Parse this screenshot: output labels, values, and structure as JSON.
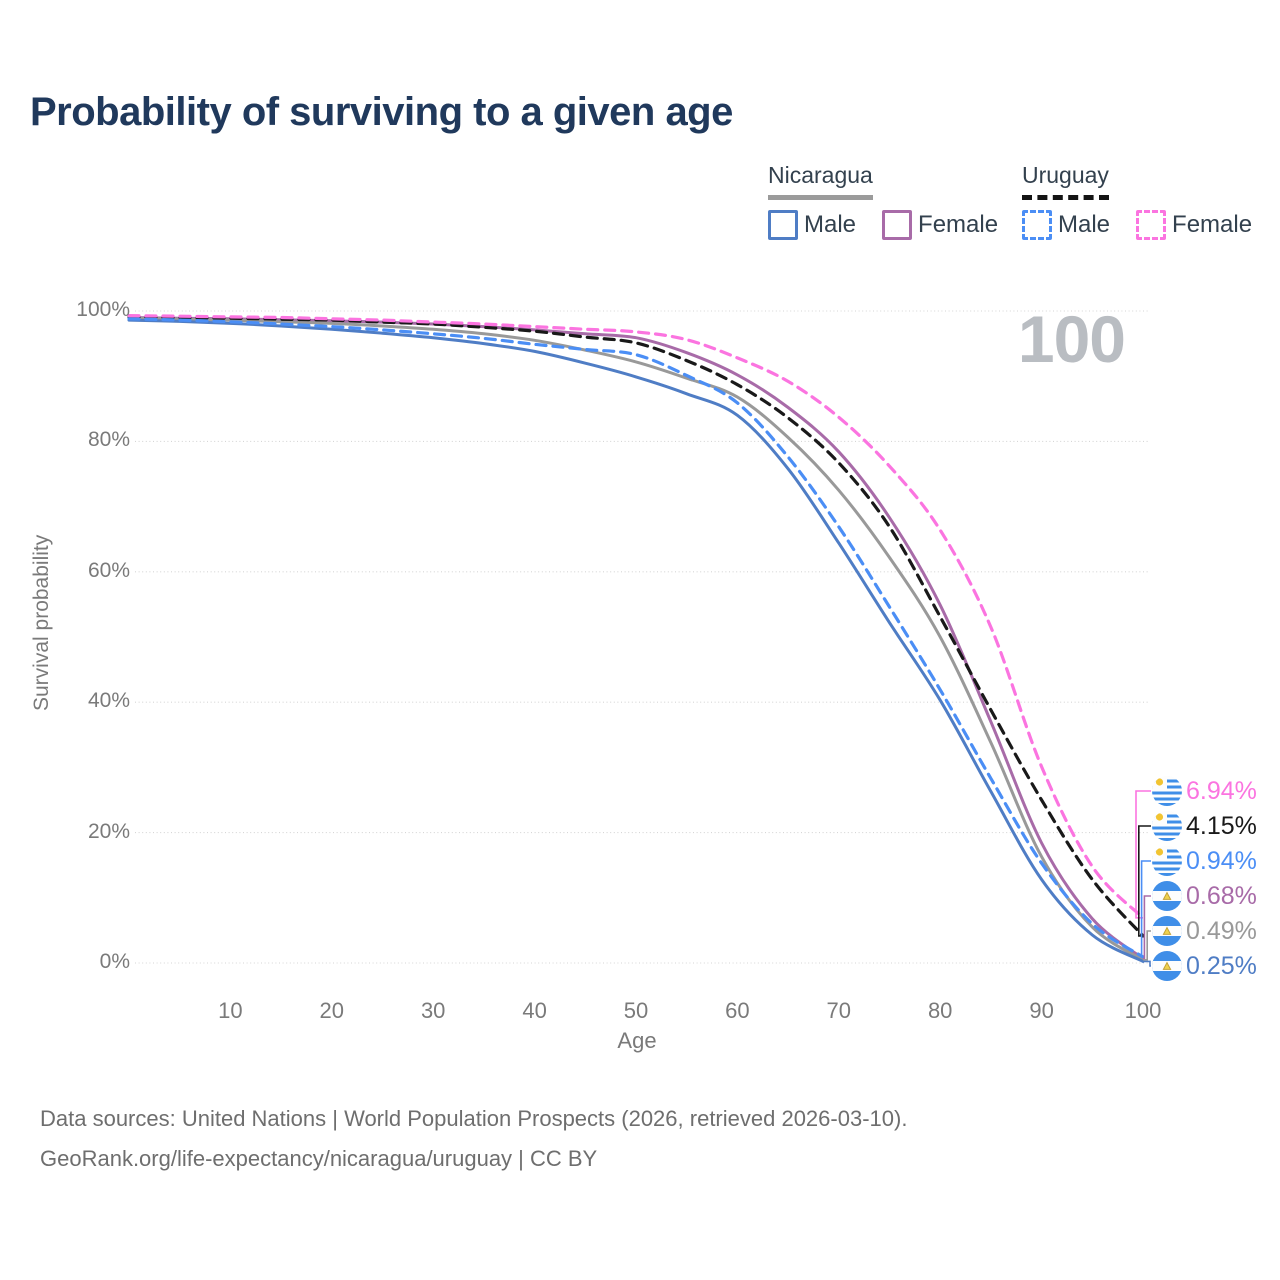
{
  "title": "Probability of surviving to a given age",
  "legend": {
    "groups": [
      {
        "label": "Nicaragua",
        "line_style": "solid",
        "line_color": "#9b9b9b",
        "items": [
          {
            "label": "Male",
            "color": "#4f7dc5",
            "dash": false
          },
          {
            "label": "Female",
            "color": "#a86ba8",
            "dash": false
          }
        ]
      },
      {
        "label": "Uruguay",
        "line_style": "dashed",
        "line_color": "#141414",
        "items": [
          {
            "label": "Male",
            "color": "#4b8ef5",
            "dash": true
          },
          {
            "label": "Female",
            "color": "#fb74e0",
            "dash": true
          }
        ]
      }
    ]
  },
  "chart_data": {
    "type": "line",
    "title": "Probability of surviving to a given age",
    "xlabel": "Age",
    "ylabel": "Survival probability",
    "xlim": [
      0,
      100
    ],
    "ylim": [
      0,
      100
    ],
    "grid": true,
    "watermark": "100",
    "x_ticks": [
      10,
      20,
      30,
      40,
      50,
      60,
      70,
      80,
      90,
      100
    ],
    "y_ticks": [
      {
        "v": 100,
        "label": "100%"
      },
      {
        "v": 80,
        "label": "80%"
      },
      {
        "v": 60,
        "label": "60%"
      },
      {
        "v": 40,
        "label": "40%"
      },
      {
        "v": 20,
        "label": "20%"
      },
      {
        "v": 0,
        "label": "0%"
      }
    ],
    "x": [
      0,
      5,
      10,
      15,
      20,
      25,
      30,
      35,
      40,
      45,
      50,
      55,
      60,
      65,
      70,
      75,
      80,
      85,
      90,
      95,
      100
    ],
    "series": [
      {
        "name": "Nicaragua Female",
        "country": "nicaragua",
        "sex": "female",
        "color": "#a86ba8",
        "dash": false,
        "values": [
          99.0,
          98.9,
          98.8,
          98.65,
          98.5,
          98.3,
          98.0,
          97.6,
          97.1,
          96.5,
          95.9,
          93.6,
          90.2,
          85.2,
          78.4,
          68.3,
          54.9,
          37.0,
          18.4,
          6.8,
          0.68
        ]
      },
      {
        "name": "Nicaragua",
        "country": "nicaragua",
        "sex": "both",
        "color": "#999999",
        "dash": false,
        "values": [
          98.9,
          98.75,
          98.6,
          98.35,
          98.1,
          97.7,
          97.2,
          96.5,
          95.5,
          94.0,
          92.2,
          89.7,
          86.8,
          80.6,
          72.5,
          62.2,
          50.0,
          33.8,
          16.3,
          5.5,
          0.49
        ]
      },
      {
        "name": "Nicaragua Male",
        "country": "nicaragua",
        "sex": "male",
        "color": "#4f7dc5",
        "dash": false,
        "values": [
          98.6,
          98.4,
          98.1,
          97.7,
          97.2,
          96.6,
          95.9,
          95.0,
          93.8,
          92.0,
          89.9,
          87.3,
          84.0,
          75.8,
          64.4,
          52.2,
          40.3,
          26.3,
          12.8,
          4.3,
          0.25
        ]
      },
      {
        "name": "Uruguay",
        "country": "uruguay",
        "sex": "both",
        "color": "#191919",
        "dash": true,
        "values": [
          99.1,
          99.0,
          98.9,
          98.75,
          98.6,
          98.3,
          98.0,
          97.5,
          96.9,
          96.0,
          95.1,
          92.4,
          88.7,
          83.6,
          76.7,
          66.9,
          53.1,
          38.8,
          25.0,
          12.8,
          4.15
        ]
      },
      {
        "name": "Uruguay Male",
        "country": "uruguay",
        "sex": "male",
        "color": "#4b8ef5",
        "dash": true,
        "values": [
          98.8,
          98.6,
          98.35,
          98.0,
          97.6,
          97.1,
          96.5,
          95.8,
          94.9,
          94.1,
          93.3,
          90.1,
          85.9,
          77.6,
          66.9,
          54.6,
          41.9,
          28.3,
          15.3,
          6.0,
          0.94
        ]
      },
      {
        "name": "Uruguay Female",
        "country": "uruguay",
        "sex": "female",
        "color": "#fb74e0",
        "dash": true,
        "values": [
          99.3,
          99.2,
          99.1,
          99.0,
          98.8,
          98.6,
          98.3,
          98.0,
          97.6,
          97.2,
          96.8,
          95.6,
          92.8,
          89.2,
          83.7,
          76.2,
          66.4,
          51.5,
          30.1,
          14.8,
          6.94
        ]
      }
    ],
    "endpoints": [
      {
        "label": "6.94%",
        "value": 6.94,
        "flag": "uruguay",
        "color": "#fb74e0"
      },
      {
        "label": "4.15%",
        "value": 4.15,
        "flag": "uruguay",
        "color": "#191919"
      },
      {
        "label": "0.94%",
        "value": 0.94,
        "flag": "uruguay",
        "color": "#4b8ef5"
      },
      {
        "label": "0.68%",
        "value": 0.68,
        "flag": "nicaragua",
        "color": "#a86ba8"
      },
      {
        "label": "0.49%",
        "value": 0.49,
        "flag": "nicaragua",
        "color": "#999999"
      },
      {
        "label": "0.25%",
        "value": 0.25,
        "flag": "nicaragua",
        "color": "#4f7dc5"
      }
    ]
  },
  "footer": {
    "line1": "Data sources: United Nations | World Population Prospects (2026, retrieved 2026-03-10).",
    "line2": "GeoRank.org/life-expectancy/nicaragua/uruguay | CC BY"
  }
}
